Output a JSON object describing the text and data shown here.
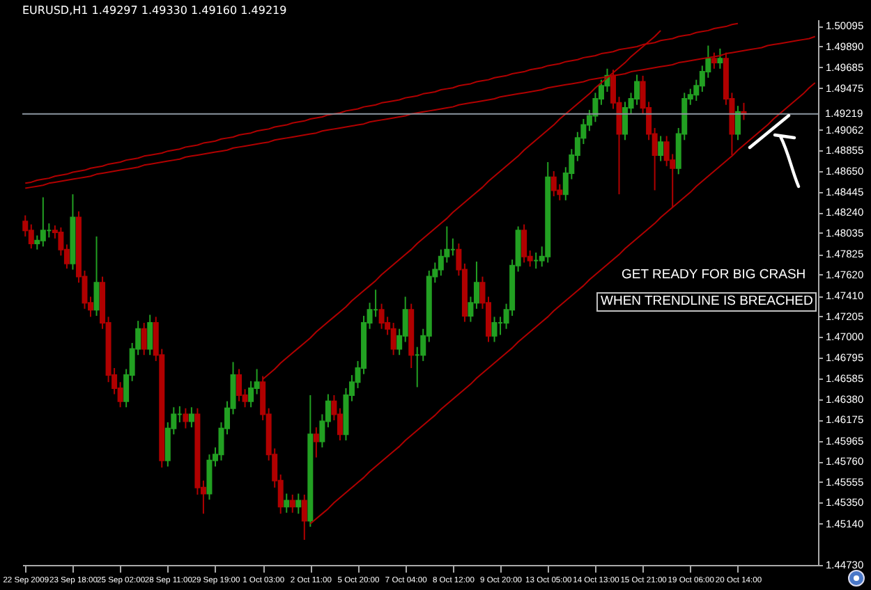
{
  "chart_data": {
    "type": "candlestick",
    "title": "EURUSD,H1  1.49297 1.49330 1.49160 1.49219",
    "categories": [
      "22 Sep 2009",
      null,
      null,
      null,
      null,
      null,
      null,
      null,
      "23 Sep 18:00",
      null,
      null,
      null,
      null,
      null,
      null,
      null,
      "25 Sep 02:00",
      null,
      null,
      null,
      null,
      null,
      null,
      null,
      "28 Sep 11:00",
      null,
      null,
      null,
      null,
      null,
      null,
      null,
      "29 Sep 19:00",
      null,
      null,
      null,
      null,
      null,
      null,
      null,
      "1 Oct 03:00",
      null,
      null,
      null,
      null,
      null,
      null,
      null,
      "2 Oct 11:00",
      null,
      null,
      null,
      null,
      null,
      null,
      null,
      "5 Oct 20:00",
      null,
      null,
      null,
      null,
      null,
      null,
      null,
      "7 Oct 04:00",
      null,
      null,
      null,
      null,
      null,
      null,
      null,
      "8 Oct 12:00",
      null,
      null,
      null,
      null,
      null,
      null,
      null,
      "9 Oct 20:00",
      null,
      null,
      null,
      null,
      null,
      null,
      null,
      "13 Oct 05:00",
      null,
      null,
      null,
      null,
      null,
      null,
      null,
      "14 Oct 13:00",
      null,
      null,
      null,
      null,
      null,
      null,
      null,
      "15 Oct 21:00",
      null,
      null,
      null,
      null,
      null,
      null,
      null,
      "19 Oct 06:00",
      null,
      null,
      null,
      null,
      null,
      null,
      null,
      "20 Oct 14:00",
      null,
      null,
      null,
      null,
      null,
      null,
      null,
      null,
      null,
      null,
      null,
      null,
      null
    ],
    "ohlc": [
      [
        1.4815,
        1.4821,
        1.48,
        1.4806
      ],
      [
        1.4806,
        1.4812,
        1.4788,
        1.4793
      ],
      [
        1.4793,
        1.4801,
        1.4787,
        1.4796
      ],
      [
        1.4796,
        1.4839,
        1.479,
        1.4806
      ],
      [
        1.4806,
        1.4813,
        1.4799,
        1.4806
      ],
      [
        1.4806,
        1.4811,
        1.4798,
        1.4804
      ],
      [
        1.4804,
        1.4809,
        1.4781,
        1.4787
      ],
      [
        1.4787,
        1.4792,
        1.4768,
        1.4773
      ],
      [
        1.4773,
        1.4842,
        1.4767,
        1.4819
      ],
      [
        1.4819,
        1.4825,
        1.4754,
        1.476
      ],
      [
        1.476,
        1.4766,
        1.4728,
        1.4734
      ],
      [
        1.4734,
        1.474,
        1.472,
        1.4727
      ],
      [
        1.4727,
        1.48,
        1.4721,
        1.4754
      ],
      [
        1.4754,
        1.476,
        1.4708,
        1.4714
      ],
      [
        1.4714,
        1.472,
        1.4655,
        1.4662
      ],
      [
        1.4662,
        1.4669,
        1.4643,
        1.4649
      ],
      [
        1.4649,
        1.4655,
        1.463,
        1.4636
      ],
      [
        1.4636,
        1.4668,
        1.463,
        1.4662
      ],
      [
        1.4662,
        1.4694,
        1.4656,
        1.4688
      ],
      [
        1.4688,
        1.4716,
        1.4682,
        1.4708
      ],
      [
        1.4708,
        1.4714,
        1.4682,
        1.4688
      ],
      [
        1.4688,
        1.4722,
        1.4682,
        1.4714
      ],
      [
        1.4714,
        1.472,
        1.4676,
        1.4682
      ],
      [
        1.4682,
        1.4688,
        1.457,
        1.4577
      ],
      [
        1.4577,
        1.4615,
        1.4571,
        1.4609
      ],
      [
        1.4609,
        1.463,
        1.4603,
        1.4623
      ],
      [
        1.4623,
        1.4631,
        1.4615,
        1.4623
      ],
      [
        1.4623,
        1.4629,
        1.4609,
        1.4616
      ],
      [
        1.4616,
        1.463,
        1.461,
        1.4623
      ],
      [
        1.4623,
        1.4629,
        1.4543,
        1.455
      ],
      [
        1.455,
        1.4557,
        1.4524,
        1.4544
      ],
      [
        1.4544,
        1.4583,
        1.4538,
        1.4577
      ],
      [
        1.4577,
        1.459,
        1.4571,
        1.4583
      ],
      [
        1.4583,
        1.4615,
        1.4577,
        1.4609
      ],
      [
        1.4609,
        1.4636,
        1.4603,
        1.4629
      ],
      [
        1.4629,
        1.4675,
        1.4623,
        1.4662
      ],
      [
        1.4662,
        1.4668,
        1.4636,
        1.4642
      ],
      [
        1.4642,
        1.4648,
        1.463,
        1.4636
      ],
      [
        1.4636,
        1.4656,
        1.463,
        1.4649
      ],
      [
        1.4649,
        1.4668,
        1.4643,
        1.4655
      ],
      [
        1.4655,
        1.4661,
        1.4617,
        1.4623
      ],
      [
        1.4623,
        1.4629,
        1.4577,
        1.4583
      ],
      [
        1.4583,
        1.4589,
        1.455,
        1.4557
      ],
      [
        1.4557,
        1.4563,
        1.4524,
        1.4531
      ],
      [
        1.4531,
        1.4544,
        1.4525,
        1.4537
      ],
      [
        1.4537,
        1.4543,
        1.4525,
        1.4531
      ],
      [
        1.4531,
        1.4544,
        1.4524,
        1.4537
      ],
      [
        1.4537,
        1.4543,
        1.4498,
        1.4517
      ],
      [
        1.4517,
        1.4642,
        1.4511,
        1.4603
      ],
      [
        1.4603,
        1.461,
        1.458,
        1.4596
      ],
      [
        1.4596,
        1.4623,
        1.459,
        1.4616
      ],
      [
        1.4616,
        1.4643,
        1.461,
        1.4636
      ],
      [
        1.4636,
        1.4642,
        1.4617,
        1.4623
      ],
      [
        1.4623,
        1.4629,
        1.4597,
        1.4603
      ],
      [
        1.4603,
        1.4649,
        1.4597,
        1.4642
      ],
      [
        1.4642,
        1.4662,
        1.4636,
        1.4655
      ],
      [
        1.4655,
        1.4676,
        1.4649,
        1.4669
      ],
      [
        1.4669,
        1.4721,
        1.4663,
        1.4714
      ],
      [
        1.4714,
        1.4734,
        1.4708,
        1.4727
      ],
      [
        1.4727,
        1.4747,
        1.472,
        1.4727
      ],
      [
        1.4727,
        1.4733,
        1.4708,
        1.4714
      ],
      [
        1.4714,
        1.472,
        1.4702,
        1.4708
      ],
      [
        1.4708,
        1.4714,
        1.4682,
        1.4688
      ],
      [
        1.4688,
        1.4708,
        1.4682,
        1.4701
      ],
      [
        1.4701,
        1.474,
        1.4695,
        1.4727
      ],
      [
        1.4727,
        1.4733,
        1.4669,
        1.4682
      ],
      [
        1.4682,
        1.469,
        1.465,
        1.4682
      ],
      [
        1.4682,
        1.4708,
        1.4676,
        1.4701
      ],
      [
        1.4701,
        1.4766,
        1.4695,
        1.476
      ],
      [
        1.476,
        1.4774,
        1.4754,
        1.4767
      ],
      [
        1.4767,
        1.4787,
        1.4761,
        1.478
      ],
      [
        1.478,
        1.481,
        1.4774,
        1.4787
      ],
      [
        1.4787,
        1.4798,
        1.4781,
        1.4787
      ],
      [
        1.4787,
        1.4793,
        1.4761,
        1.4767
      ],
      [
        1.4767,
        1.4773,
        1.4715,
        1.4721
      ],
      [
        1.4721,
        1.474,
        1.4715,
        1.4734
      ],
      [
        1.4734,
        1.4775,
        1.4728,
        1.4754
      ],
      [
        1.4754,
        1.476,
        1.4728,
        1.4734
      ],
      [
        1.4734,
        1.474,
        1.4695,
        1.4701
      ],
      [
        1.4701,
        1.472,
        1.4695,
        1.4714
      ],
      [
        1.4714,
        1.472,
        1.4702,
        1.4714
      ],
      [
        1.4714,
        1.4733,
        1.4708,
        1.4727
      ],
      [
        1.4727,
        1.4777,
        1.4721,
        1.4771
      ],
      [
        1.4771,
        1.481,
        1.4765,
        1.4806
      ],
      [
        1.4806,
        1.4812,
        1.4774,
        1.478
      ],
      [
        1.478,
        1.4786,
        1.477,
        1.4776
      ],
      [
        1.4776,
        1.4784,
        1.4768,
        1.4776
      ],
      [
        1.4776,
        1.479,
        1.477,
        1.478
      ],
      [
        1.478,
        1.4874,
        1.4774,
        1.4859
      ],
      [
        1.4859,
        1.4865,
        1.484,
        1.4846
      ],
      [
        1.4846,
        1.4852,
        1.4836,
        1.4842
      ],
      [
        1.4842,
        1.4869,
        1.4836,
        1.4863
      ],
      [
        1.4863,
        1.4887,
        1.4857,
        1.4881
      ],
      [
        1.4881,
        1.4904,
        1.4875,
        1.4898
      ],
      [
        1.4898,
        1.4917,
        1.4892,
        1.4911
      ],
      [
        1.4911,
        1.4926,
        1.4905,
        1.492
      ],
      [
        1.492,
        1.4943,
        1.4914,
        1.4937
      ],
      [
        1.4937,
        1.4956,
        1.4931,
        1.495
      ],
      [
        1.495,
        1.4967,
        1.4944,
        1.496
      ],
      [
        1.496,
        1.4966,
        1.4927,
        1.4933
      ],
      [
        1.4933,
        1.4939,
        1.4842,
        1.4902
      ],
      [
        1.4902,
        1.4934,
        1.4896,
        1.4928
      ],
      [
        1.4928,
        1.4943,
        1.4922,
        1.4937
      ],
      [
        1.4937,
        1.4961,
        1.4931,
        1.4954
      ],
      [
        1.4954,
        1.496,
        1.4922,
        1.4928
      ],
      [
        1.4928,
        1.4934,
        1.4896,
        1.4902
      ],
      [
        1.4902,
        1.4908,
        1.4846,
        1.4881
      ],
      [
        1.4881,
        1.49,
        1.4875,
        1.4894
      ],
      [
        1.4894,
        1.49,
        1.487,
        1.4876
      ],
      [
        1.4876,
        1.4882,
        1.4829,
        1.4868
      ],
      [
        1.4868,
        1.4908,
        1.4862,
        1.4902
      ],
      [
        1.4902,
        1.4943,
        1.4896,
        1.4937
      ],
      [
        1.4937,
        1.4947,
        1.4931,
        1.4941
      ],
      [
        1.4941,
        1.4956,
        1.4935,
        1.495
      ],
      [
        1.495,
        1.497,
        1.4944,
        1.4964
      ],
      [
        1.4964,
        1.499,
        1.4958,
        1.4977
      ],
      [
        1.4977,
        1.4983,
        1.4967,
        1.4973
      ],
      [
        1.4973,
        1.4987,
        1.4967,
        1.4977
      ],
      [
        1.4977,
        1.4983,
        1.4931,
        1.4937
      ],
      [
        1.4937,
        1.4943,
        1.4881,
        1.4902
      ],
      [
        1.4902,
        1.493,
        1.4896,
        1.4924
      ],
      [
        1.4924,
        1.4933,
        1.4916,
        1.4922
      ],
      null,
      null,
      null,
      null,
      null,
      null,
      null,
      null,
      null,
      null,
      null,
      null
    ],
    "colors": [
      "#b00000",
      "#b00000",
      "#22a022",
      "#22a022",
      "#22a022",
      "#b00000",
      "#b00000",
      "#b00000",
      "#22a022",
      "#b00000",
      "#b00000",
      "#b00000",
      "#22a022",
      "#b00000",
      "#b00000",
      "#b00000",
      "#b00000",
      "#22a022",
      "#22a022",
      "#22a022",
      "#b00000",
      "#22a022",
      "#b00000",
      "#b00000",
      "#22a022",
      "#22a022",
      "#22a022",
      "#b00000",
      "#22a022",
      "#b00000",
      "#b00000",
      "#22a022",
      "#22a022",
      "#22a022",
      "#22a022",
      "#22a022",
      "#b00000",
      "#b00000",
      "#22a022",
      "#22a022",
      "#b00000",
      "#b00000",
      "#b00000",
      "#b00000",
      "#22a022",
      "#b00000",
      "#22a022",
      "#b00000",
      "#22a022",
      "#b00000",
      "#22a022",
      "#22a022",
      "#b00000",
      "#b00000",
      "#22a022",
      "#22a022",
      "#22a022",
      "#22a022",
      "#22a022",
      "#22a022",
      "#b00000",
      "#b00000",
      "#b00000",
      "#22a022",
      "#22a022",
      "#b00000",
      "#22a022",
      "#22a022",
      "#22a022",
      "#22a022",
      "#22a022",
      "#22a022",
      "#22a022",
      "#b00000",
      "#b00000",
      "#22a022",
      "#22a022",
      "#b00000",
      "#b00000",
      "#22a022",
      "#22a022",
      "#22a022",
      "#22a022",
      "#22a022",
      "#b00000",
      "#b00000",
      "#22a022",
      "#22a022",
      "#22a022",
      "#b00000",
      "#b00000",
      "#22a022",
      "#22a022",
      "#22a022",
      "#22a022",
      "#22a022",
      "#22a022",
      "#22a022",
      "#22a022",
      "#b00000",
      "#b00000",
      "#22a022",
      "#22a022",
      "#22a022",
      "#b00000",
      "#b00000",
      "#b00000",
      "#22a022",
      "#b00000",
      "#b00000",
      "#22a022",
      "#22a022",
      "#22a022",
      "#22a022",
      "#22a022",
      "#22a022",
      "#b00000",
      "#22a022",
      "#b00000",
      "#b00000",
      "#22a022",
      "#b00000",
      null,
      null,
      null,
      null,
      null,
      null,
      null,
      null,
      null,
      null,
      null,
      null
    ],
    "series": [
      {
        "type": "line",
        "color": "#b00000",
        "values": [
          null,
          null,
          null,
          null,
          null,
          null,
          null,
          null,
          null,
          null,
          null,
          null,
          null,
          null,
          null,
          null,
          null,
          null,
          null,
          null,
          null,
          null,
          null,
          null,
          null,
          null,
          null,
          null,
          null,
          null,
          null,
          null,
          null,
          null,
          null,
          null,
          null,
          null,
          null,
          null,
          null,
          null,
          null,
          null,
          null,
          null,
          null,
          null,
          1.4514,
          1.4519,
          1.4524,
          1.4529,
          1.4535,
          1.454,
          1.4545,
          1.455,
          1.4555,
          1.456,
          1.4566,
          1.4571,
          1.4576,
          1.4581,
          1.4586,
          1.4591,
          1.4597,
          1.4602,
          1.4607,
          1.4612,
          1.4617,
          1.4622,
          1.4628,
          1.4633,
          1.4638,
          1.4643,
          1.4648,
          1.4653,
          1.4659,
          1.4664,
          1.4669,
          1.4674,
          1.4679,
          1.4684,
          1.4689,
          1.4695,
          1.47,
          1.4705,
          1.471,
          1.4715,
          1.472,
          1.4726,
          1.4731,
          1.4736,
          1.4741,
          1.4746,
          1.4751,
          1.4757,
          1.4762,
          1.4767,
          1.4772,
          1.4777,
          1.4782,
          1.4788,
          1.4793,
          1.4798,
          1.4803,
          1.4808,
          1.4813,
          1.4819,
          1.4824,
          1.4829,
          1.4834,
          1.4839,
          1.4844,
          1.485,
          1.4855,
          1.486,
          1.4865,
          1.487,
          1.4875,
          1.488,
          1.4886,
          1.4891,
          1.4896,
          1.4901,
          1.4906,
          1.4911,
          1.4917,
          1.4922,
          1.4927,
          1.4932,
          1.4937,
          1.4942,
          1.4948,
          1.4953
        ]
      },
      {
        "type": "line",
        "color": "#b00000",
        "values": [
          null,
          null,
          null,
          null,
          null,
          null,
          null,
          null,
          null,
          null,
          null,
          null,
          null,
          null,
          null,
          null,
          null,
          null,
          null,
          null,
          null,
          null,
          null,
          null,
          null,
          null,
          null,
          null,
          null,
          null,
          null,
          null,
          null,
          null,
          null,
          null,
          null,
          null,
          null,
          null,
          1.4658,
          1.4663,
          1.4668,
          1.4674,
          1.4679,
          1.4684,
          1.4689,
          1.4694,
          1.4699,
          1.4705,
          1.471,
          1.4715,
          1.472,
          1.4725,
          1.473,
          1.4736,
          1.4741,
          1.4746,
          1.4751,
          1.4756,
          1.4762,
          1.4767,
          1.4772,
          1.4777,
          1.4782,
          1.4787,
          1.4793,
          1.4798,
          1.4803,
          1.4808,
          1.4813,
          1.4818,
          1.4824,
          1.4829,
          1.4834,
          1.4839,
          1.4844,
          1.4849,
          1.4855,
          1.486,
          1.4865,
          1.487,
          1.4875,
          1.488,
          1.4886,
          1.4891,
          1.4896,
          1.4901,
          1.4906,
          1.4911,
          1.4917,
          1.4922,
          1.4927,
          1.4932,
          1.4937,
          1.4942,
          1.4948,
          1.4953,
          1.4958,
          1.4963,
          1.4968,
          1.4973,
          1.4979,
          1.4984,
          1.4989,
          1.4994,
          1.4999,
          1.5005,
          null,
          null,
          null,
          null,
          null,
          null,
          null,
          null,
          null,
          null,
          null,
          null,
          null,
          null,
          null,
          null,
          null,
          null,
          null,
          null,
          null,
          null,
          null,
          null,
          null,
          null
        ]
      },
      {
        "type": "line",
        "color": "#b00000",
        "values": [
          1.4853,
          1.4854,
          1.4856,
          1.4857,
          1.4858,
          1.486,
          1.4861,
          1.4862,
          1.4864,
          1.4865,
          1.4866,
          1.4868,
          1.4869,
          1.487,
          1.4872,
          1.4873,
          1.4874,
          1.4876,
          1.4877,
          1.4878,
          1.488,
          1.4881,
          1.4882,
          1.4883,
          1.4885,
          1.4886,
          1.4887,
          1.4889,
          1.489,
          1.4891,
          1.4893,
          1.4894,
          1.4895,
          1.4897,
          1.4898,
          1.4899,
          1.4901,
          1.4902,
          1.4903,
          1.4905,
          1.4906,
          1.4907,
          1.4909,
          1.491,
          1.4911,
          1.4913,
          1.4914,
          1.4915,
          1.4917,
          1.4918,
          1.4919,
          1.4921,
          1.4922,
          1.4923,
          1.4925,
          1.4926,
          1.4927,
          1.4929,
          1.493,
          1.4931,
          1.4933,
          1.4934,
          1.4935,
          1.4936,
          1.4938,
          1.4939,
          1.494,
          1.4942,
          1.4943,
          1.4944,
          1.4946,
          1.4947,
          1.4948,
          1.495,
          1.4951,
          1.4952,
          1.4954,
          1.4955,
          1.4956,
          1.4958,
          1.4959,
          1.496,
          1.4962,
          1.4963,
          1.4964,
          1.4966,
          1.4967,
          1.4968,
          1.497,
          1.4971,
          1.4972,
          1.4974,
          1.4975,
          1.4976,
          1.4978,
          1.4979,
          1.498,
          1.4982,
          1.4983,
          1.4984,
          1.4986,
          1.4987,
          1.4988,
          1.4989,
          1.4991,
          1.4992,
          1.4993,
          1.4995,
          1.4996,
          1.4997,
          1.4999,
          1.5,
          1.5001,
          1.5003,
          1.5004,
          1.5005,
          1.5007,
          1.5008,
          1.5009,
          1.5011,
          1.5012,
          null,
          null,
          null,
          null,
          null,
          null,
          null,
          null,
          null,
          null,
          null,
          null,
          null
        ]
      },
      {
        "type": "line",
        "color": "#b00000",
        "values": [
          1.4848,
          1.4849,
          1.485,
          1.4851,
          1.4853,
          1.4854,
          1.4855,
          1.4856,
          1.4857,
          1.4858,
          1.4859,
          1.486,
          1.4862,
          1.4863,
          1.4864,
          1.4865,
          1.4866,
          1.4867,
          1.4868,
          1.4869,
          1.4871,
          1.4872,
          1.4873,
          1.4874,
          1.4875,
          1.4876,
          1.4877,
          1.4879,
          1.488,
          1.4881,
          1.4882,
          1.4883,
          1.4884,
          1.4885,
          1.4886,
          1.4888,
          1.4889,
          1.489,
          1.4891,
          1.4892,
          1.4893,
          1.4894,
          1.4896,
          1.4897,
          1.4898,
          1.4899,
          1.49,
          1.4901,
          1.4902,
          1.4903,
          1.4905,
          1.4906,
          1.4907,
          1.4908,
          1.4909,
          1.491,
          1.4911,
          1.4912,
          1.4914,
          1.4915,
          1.4916,
          1.4917,
          1.4918,
          1.4919,
          1.492,
          1.4922,
          1.4923,
          1.4924,
          1.4925,
          1.4926,
          1.4927,
          1.4928,
          1.4929,
          1.4931,
          1.4932,
          1.4933,
          1.4934,
          1.4935,
          1.4936,
          1.4937,
          1.4939,
          1.494,
          1.4941,
          1.4942,
          1.4943,
          1.4944,
          1.4945,
          1.4946,
          1.4948,
          1.4949,
          1.495,
          1.4951,
          1.4952,
          1.4953,
          1.4954,
          1.4956,
          1.4957,
          1.4958,
          1.4959,
          1.496,
          1.4961,
          1.4962,
          1.4964,
          1.4965,
          1.4966,
          1.4967,
          1.4968,
          1.4969,
          1.497,
          1.4971,
          1.4973,
          1.4974,
          1.4975,
          1.4976,
          1.4977,
          1.4978,
          1.4979,
          1.498,
          1.4982,
          1.4983,
          1.4984,
          1.4985,
          1.4986,
          1.4987,
          1.4988,
          1.499,
          1.4991,
          1.4992,
          1.4993,
          1.4994,
          1.4995,
          1.4996,
          1.4997,
          1.4999
        ]
      }
    ],
    "ref_lines": [
      {
        "axis": "y",
        "value": 1.49219,
        "label": "1.49219",
        "color": "#8c96a0"
      }
    ],
    "annotations": [
      "GET READY FOR BIG CRASH",
      "WHEN TRENDLINE IS BREACHED"
    ],
    "ylim": [
      1.4473,
      1.5016
    ],
    "yticks": [
      {
        "value": 1.50095,
        "label": "1.50095"
      },
      {
        "value": 1.4989,
        "label": "1.49890"
      },
      {
        "value": 1.49685,
        "label": "1.49685"
      },
      {
        "value": 1.49475,
        "label": "1.49475"
      },
      {
        "value": 1.49062,
        "label": "1.49062"
      },
      {
        "value": 1.48855,
        "label": "1.48855"
      },
      {
        "value": 1.4865,
        "label": "1.48650"
      },
      {
        "value": 1.48445,
        "label": "1.48445"
      },
      {
        "value": 1.4824,
        "label": "1.48240"
      },
      {
        "value": 1.48035,
        "label": "1.48035"
      },
      {
        "value": 1.47825,
        "label": "1.47825"
      },
      {
        "value": 1.4762,
        "label": "1.47620"
      },
      {
        "value": 1.4741,
        "label": "1.47410"
      },
      {
        "value": 1.47205,
        "label": "1.47205"
      },
      {
        "value": 1.47,
        "label": "1.47000"
      },
      {
        "value": 1.46795,
        "label": "1.46795"
      },
      {
        "value": 1.46585,
        "label": "1.46585"
      },
      {
        "value": 1.4638,
        "label": "1.46380"
      },
      {
        "value": 1.46175,
        "label": "1.46175"
      },
      {
        "value": 1.45965,
        "label": "1.45965"
      },
      {
        "value": 1.4576,
        "label": "1.45760"
      },
      {
        "value": 1.45555,
        "label": "1.45555"
      },
      {
        "value": 1.4535,
        "label": "1.45350"
      },
      {
        "value": 1.4514,
        "label": "1.45140"
      },
      {
        "value": 1.4473,
        "label": "1.44730"
      }
    ]
  }
}
